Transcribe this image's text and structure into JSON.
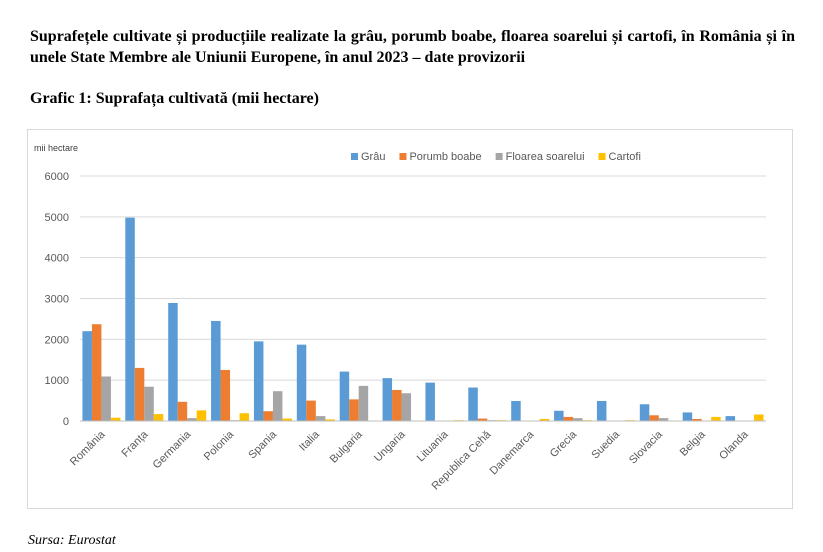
{
  "heading": "Suprafețele cultivate și producțiile realizate la grâu, porumb boabe, floarea soarelui și cartofi, în România și în unele State Membre ale Uniunii Europene, în anul 2023 – date provizorii",
  "subheading": "Grafic 1: Suprafața cultivată (mii hectare)",
  "source": "Sursa: Eurostat",
  "chart_data": {
    "type": "bar",
    "ylabel": "mii hectare",
    "ylim": [
      0,
      6000
    ],
    "yticks": [
      0,
      1000,
      2000,
      3000,
      4000,
      5000,
      6000
    ],
    "grid": true,
    "legend_position": "top",
    "categories": [
      "România",
      "Franța",
      "Germania",
      "Polonia",
      "Spania",
      "Italia",
      "Bulgaria",
      "Ungaria",
      "Lituania",
      "Republica Cehă",
      "Danemarca",
      "Grecia",
      "Suedia",
      "Slovacia",
      "Belgia",
      "Olanda"
    ],
    "series": [
      {
        "name": "Grâu",
        "color": "#5b9bd5",
        "values": [
          2200,
          4980,
          2890,
          2450,
          1950,
          1870,
          1210,
          1050,
          940,
          820,
          490,
          250,
          490,
          410,
          210,
          120
        ]
      },
      {
        "name": "Porumb boabe",
        "color": "#ed7d31",
        "values": [
          2370,
          1300,
          470,
          1250,
          240,
          500,
          530,
          760,
          10,
          60,
          10,
          100,
          10,
          140,
          50,
          10
        ]
      },
      {
        "name": "Floarea soarelui",
        "color": "#a5a5a5",
        "values": [
          1090,
          840,
          70,
          20,
          730,
          120,
          860,
          680,
          5,
          20,
          5,
          70,
          5,
          70,
          5,
          5
        ]
      },
      {
        "name": "Cartofi",
        "color": "#ffc000",
        "values": [
          80,
          170,
          260,
          190,
          60,
          40,
          10,
          10,
          20,
          20,
          50,
          20,
          20,
          10,
          100,
          160
        ]
      }
    ]
  }
}
